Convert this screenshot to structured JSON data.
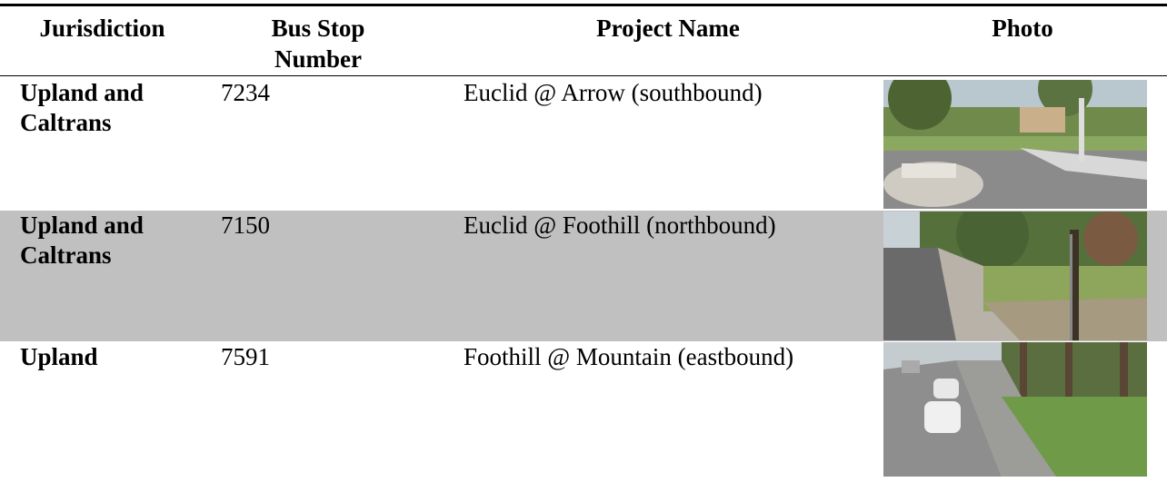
{
  "table": {
    "columns": [
      "Jurisdiction",
      "Bus Stop Number",
      "Project Name",
      "Photo"
    ],
    "rows": [
      [
        "Upland and Caltrans",
        "7234",
        "Euclid @ Arrow (southbound)"
      ],
      [
        "Upland and Caltrans",
        "7150",
        "Euclid @ Foothill (northbound)"
      ],
      [
        "Upland",
        "7591",
        "Foothill @ Mountain (eastbound)"
      ]
    ]
  }
}
